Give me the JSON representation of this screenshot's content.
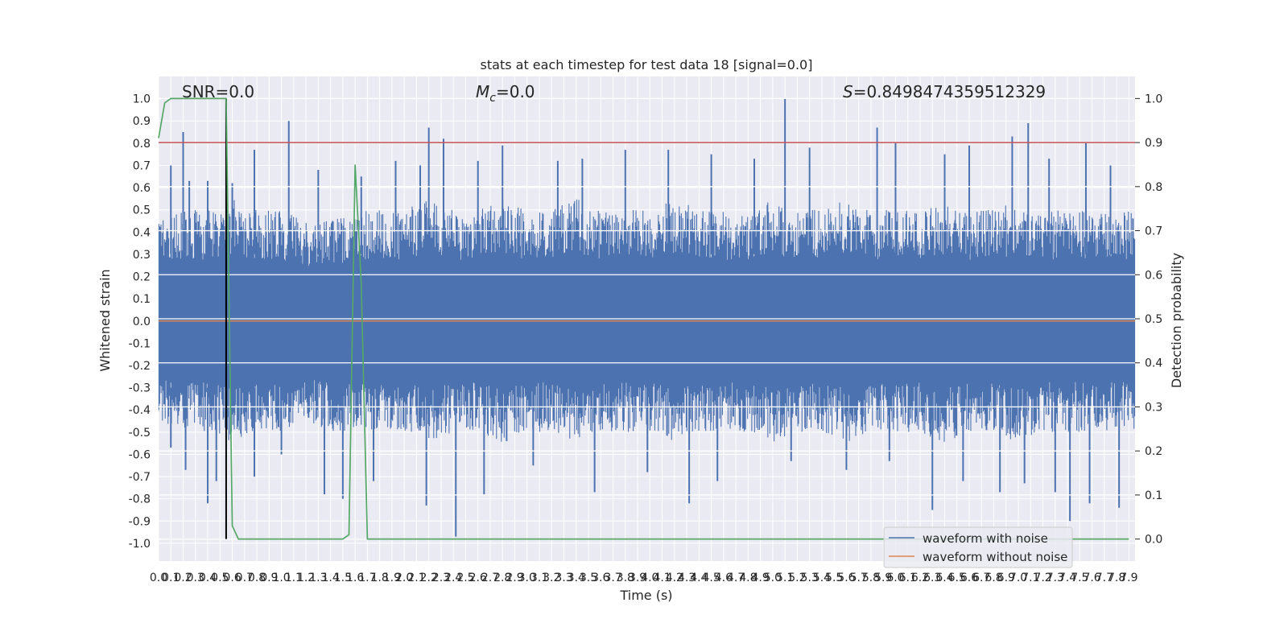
{
  "chart_data": {
    "type": "line",
    "title": "stats at each timestep for test data 18 [signal=0.0]",
    "xlabel": "Time (s)",
    "ylabel_left": "Whitened strain",
    "ylabel_right": "Detection probability",
    "annotations": {
      "snr": "SNR=0.0",
      "mc_symbol": "M",
      "mc_sub": "c",
      "mc_value": "=0.0",
      "s_symbol": "S",
      "s_value": "=0.8498474359512329"
    },
    "xlim": [
      0.0,
      7.95
    ],
    "ylim_left": [
      -1.08,
      1.1
    ],
    "ylim_right": [
      -0.05,
      1.05
    ],
    "x_ticks": [
      "0.0",
      "0.1",
      "0.2",
      "0.3",
      "0.4",
      "0.5",
      "0.6",
      "0.7",
      "0.8",
      "0.9",
      "1.0",
      "1.1",
      "1.2",
      "1.3",
      "1.4",
      "1.5",
      "1.6",
      "1.7",
      "1.8",
      "1.9",
      "2.0",
      "2.1",
      "2.2",
      "2.3",
      "2.4",
      "2.5",
      "2.6",
      "2.7",
      "2.8",
      "2.9",
      "3.0",
      "3.1",
      "3.2",
      "3.3",
      "3.4",
      "3.5",
      "3.6",
      "3.7",
      "3.8",
      "3.9",
      "4.0",
      "4.1",
      "4.2",
      "4.3",
      "4.4",
      "4.5",
      "4.6",
      "4.7",
      "4.8",
      "4.9",
      "5.0",
      "5.1",
      "5.2",
      "5.3",
      "5.4",
      "5.5",
      "5.6",
      "5.7",
      "5.8",
      "5.9",
      "6.0",
      "6.1",
      "6.2",
      "6.3",
      "6.4",
      "6.5",
      "6.6",
      "6.7",
      "6.8",
      "6.9",
      "7.0",
      "7.1",
      "7.2",
      "7.3",
      "7.4",
      "7.5",
      "7.6",
      "7.7",
      "7.8",
      "7.9"
    ],
    "y_ticks_left": [
      "-1.0",
      "-0.9",
      "-0.8",
      "-0.7",
      "-0.6",
      "-0.5",
      "-0.4",
      "-0.3",
      "-0.2",
      "-0.1",
      "0.0",
      "0.1",
      "0.2",
      "0.3",
      "0.4",
      "0.5",
      "0.6",
      "0.7",
      "0.8",
      "0.9",
      "1.0"
    ],
    "y_ticks_right": [
      "0.0",
      "0.1",
      "0.2",
      "0.3",
      "0.4",
      "0.5",
      "0.6",
      "0.7",
      "0.8",
      "0.9",
      "1.0"
    ],
    "threshold": 0.9,
    "marker_x": 0.55,
    "series": [
      {
        "name": "waveform with noise",
        "color": "#4c72b0",
        "axis": "left",
        "envelope": {
          "x": [
            0.0,
            0.2,
            0.4,
            0.6,
            0.8,
            1.0,
            1.2,
            1.4,
            1.6,
            1.8,
            2.0,
            2.2,
            2.4,
            2.6,
            2.8,
            3.0,
            3.2,
            3.4,
            3.6,
            3.8,
            4.0,
            4.2,
            4.4,
            4.6,
            4.8,
            5.0,
            5.2,
            5.4,
            5.6,
            5.8,
            6.0,
            6.2,
            6.4,
            6.6,
            6.8,
            7.0,
            7.2,
            7.4,
            7.6,
            7.8,
            7.95
          ],
          "typ_max": [
            0.45,
            0.5,
            0.5,
            0.55,
            0.5,
            0.5,
            0.45,
            0.45,
            0.5,
            0.5,
            0.5,
            0.55,
            0.5,
            0.5,
            0.55,
            0.5,
            0.5,
            0.55,
            0.5,
            0.5,
            0.5,
            0.55,
            0.5,
            0.5,
            0.5,
            0.55,
            0.5,
            0.5,
            0.55,
            0.5,
            0.5,
            0.5,
            0.55,
            0.5,
            0.5,
            0.55,
            0.5,
            0.5,
            0.5,
            0.5,
            0.5
          ],
          "typ_min": [
            -0.45,
            -0.5,
            -0.5,
            -0.55,
            -0.5,
            -0.5,
            -0.45,
            -0.5,
            -0.5,
            -0.5,
            -0.5,
            -0.55,
            -0.5,
            -0.5,
            -0.55,
            -0.5,
            -0.5,
            -0.55,
            -0.5,
            -0.5,
            -0.5,
            -0.55,
            -0.5,
            -0.5,
            -0.5,
            -0.55,
            -0.5,
            -0.5,
            -0.55,
            -0.5,
            -0.5,
            -0.5,
            -0.55,
            -0.5,
            -0.5,
            -0.55,
            -0.5,
            -0.5,
            -0.5,
            -0.5,
            -0.5
          ]
        },
        "peaks_x": [
          0.1,
          0.2,
          0.25,
          0.4,
          0.6,
          0.78,
          1.06,
          1.3,
          1.65,
          1.93,
          2.13,
          2.2,
          2.32,
          2.6,
          2.8,
          3.25,
          3.45,
          3.8,
          4.15,
          4.5,
          4.85,
          5.1,
          5.3,
          5.85,
          6.0,
          6.4,
          6.6,
          6.95,
          7.08,
          7.25,
          7.55,
          7.75
        ],
        "peaks_y": [
          0.7,
          0.85,
          0.63,
          0.63,
          0.62,
          0.77,
          0.9,
          0.68,
          0.65,
          0.72,
          0.7,
          0.87,
          0.82,
          0.72,
          0.79,
          0.72,
          0.73,
          0.77,
          0.77,
          0.75,
          0.73,
          1.0,
          0.78,
          0.87,
          0.8,
          0.75,
          0.79,
          0.83,
          0.89,
          0.73,
          0.8,
          0.7
        ],
        "troughs_x": [
          0.1,
          0.22,
          0.4,
          0.47,
          0.78,
          1.0,
          1.35,
          1.5,
          1.75,
          2.18,
          2.42,
          2.65,
          3.05,
          3.55,
          3.98,
          4.32,
          4.55,
          5.15,
          5.6,
          5.95,
          6.3,
          6.55,
          6.85,
          7.05,
          7.3,
          7.42,
          7.58,
          7.82
        ],
        "troughs_y": [
          -0.57,
          -0.67,
          -0.82,
          -0.72,
          -0.7,
          -0.6,
          -0.78,
          -0.8,
          -0.72,
          -0.83,
          -0.97,
          -0.78,
          -0.65,
          -0.77,
          -0.68,
          -0.82,
          -0.72,
          -0.63,
          -0.67,
          -0.63,
          -0.85,
          -0.72,
          -0.77,
          -0.73,
          -0.77,
          -0.9,
          -0.82,
          -0.84
        ]
      },
      {
        "name": "waveform without noise",
        "color": "#dd8452",
        "axis": "left",
        "x": [
          0.0,
          7.95
        ],
        "y": [
          0.0,
          0.0
        ]
      },
      {
        "name": "detection probability",
        "color": "#55a868",
        "axis": "right",
        "x": [
          0.0,
          0.05,
          0.1,
          0.15,
          0.5,
          0.55,
          0.6,
          0.65,
          0.7,
          1.5,
          1.55,
          1.6,
          1.65,
          1.7,
          1.75,
          7.9
        ],
        "y": [
          0.91,
          0.99,
          1.0,
          1.0,
          1.0,
          1.0,
          0.03,
          0.0,
          0.0,
          0.0,
          0.01,
          0.85,
          0.58,
          0.0,
          0.0,
          0.0
        ]
      }
    ],
    "legend": {
      "position": "lower right",
      "entries": [
        "waveform with noise",
        "waveform without noise"
      ]
    },
    "colors": {
      "axes_bg": "#eaeaf2",
      "grid": "#ffffff",
      "threshold": "#c44e52",
      "marker": "#000000"
    },
    "grid": true
  }
}
